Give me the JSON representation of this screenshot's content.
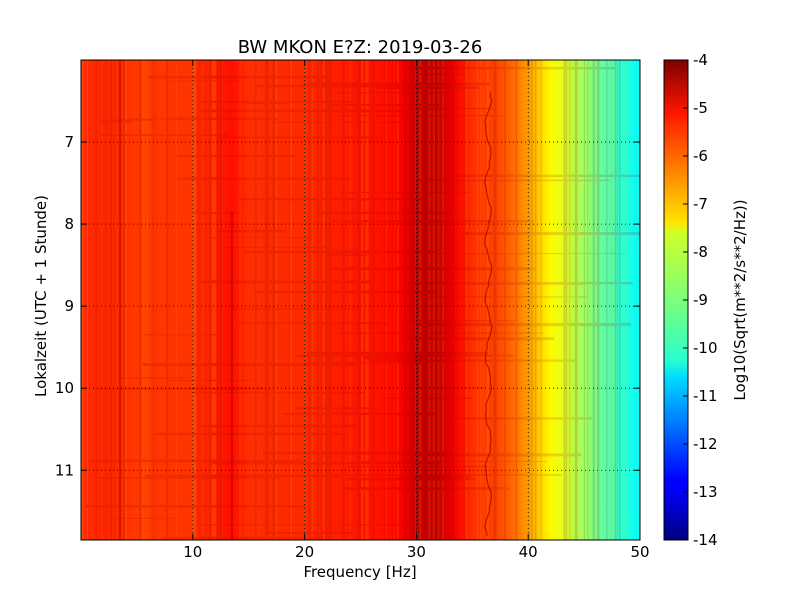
{
  "chart_data": {
    "type": "heatmap",
    "title": "BW MKON E?Z: 2019-03-26",
    "xlabel": "Frequency [Hz]",
    "ylabel": "Lokalzeit (UTC + 1 Stunde)",
    "xlim": [
      0,
      50
    ],
    "ylim": [
      6.0,
      11.85
    ],
    "y_inverted": true,
    "x_ticks": [
      10,
      20,
      30,
      40,
      50
    ],
    "y_ticks": [
      7,
      8,
      9,
      10,
      11
    ],
    "grid": true,
    "grid_style": "dotted",
    "colormap": "jet",
    "colorbar": {
      "label": "Log10(Sqrt(m**2/s**2/Hz))",
      "range": [
        -14,
        -4
      ],
      "ticks": [
        -4,
        -5,
        -6,
        -7,
        -8,
        -9,
        -10,
        -11,
        -12,
        -13,
        -14
      ]
    },
    "spectrum_profile": {
      "frequency_hz": [
        0,
        2,
        5,
        10,
        13.5,
        15,
        20,
        24,
        26,
        28,
        29,
        30,
        31,
        32,
        33,
        34,
        35,
        36,
        37,
        38,
        39,
        40,
        41,
        42,
        43,
        44,
        45,
        46,
        47,
        48,
        49,
        50
      ],
      "log10_amplitude": [
        -5.7,
        -5.6,
        -5.8,
        -5.75,
        -5.4,
        -5.7,
        -5.65,
        -5.5,
        -5.45,
        -5.35,
        -5.1,
        -4.75,
        -4.65,
        -4.75,
        -5.0,
        -5.4,
        -5.7,
        -5.8,
        -5.9,
        -6.1,
        -6.4,
        -6.8,
        -7.3,
        -7.7,
        -8.0,
        -8.4,
        -8.7,
        -9.1,
        -9.4,
        -9.7,
        -10.0,
        -10.3
      ]
    }
  }
}
